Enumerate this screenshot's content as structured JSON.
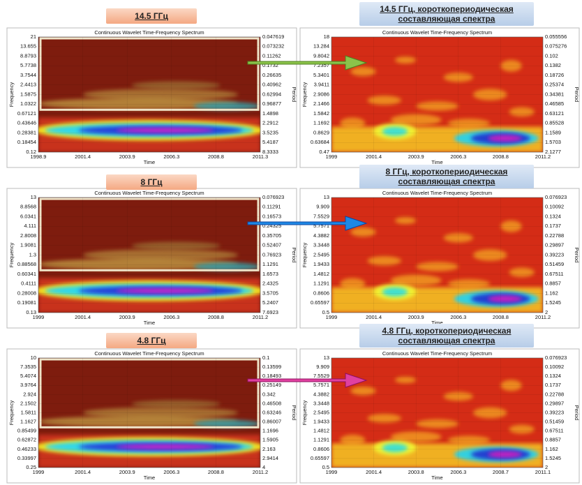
{
  "panels": [
    {
      "header": "14.5 ГГц",
      "title": "Continuous Wavelet Time-Frequency Spectrum",
      "frequency_ticks": [
        "21",
        "13.655",
        "8.8793",
        "5.7738",
        "3.7544",
        "2.4413",
        "1.5875",
        "1.0322",
        "0.67121",
        "0.43646",
        "0.28381",
        "0.18454",
        "0.12"
      ],
      "period_ticks": [
        "0.047619",
        "0.073232",
        "0.11262",
        "0.1732",
        "0.26635",
        "0.40962",
        "0.62994",
        "0.96877",
        "1.4898",
        "2.2912",
        "3.5235",
        "5.4187",
        "8.3333"
      ],
      "time_ticks": [
        "1998.9",
        "2001.4",
        "2003.9",
        "2006.3",
        "2008.8",
        "2011.3"
      ],
      "x_label": "Time",
      "y_label": "Frequency",
      "y2_label": "Period"
    },
    {
      "header": "14.5 ГГц, короткопериодическая составляющая спектра",
      "title": "Continuous Wavelet Time-Frequency Spectrum",
      "frequency_ticks": [
        "18",
        "13.284",
        "9.8042",
        "7.2357",
        "5.3401",
        "3.9411",
        "2.9086",
        "2.1466",
        "1.5842",
        "1.1692",
        "0.8629",
        "0.63684",
        "0.47"
      ],
      "period_ticks": [
        "0.055556",
        "0.075276",
        "0.102",
        "0.1382",
        "0.18726",
        "0.25374",
        "0.34381",
        "0.46585",
        "0.63121",
        "0.85528",
        "1.1589",
        "1.5703",
        "2.1277"
      ],
      "time_ticks": [
        "1999",
        "2001.4",
        "2003.9",
        "2006.3",
        "2008.8",
        "2011.2"
      ],
      "x_label": "Time",
      "y_label": "Frequency",
      "y2_label": "Period"
    },
    {
      "header": "8 ГГц",
      "title": "Continuous Wavelet Time-Frequency Spectrum",
      "frequency_ticks": [
        "13",
        "8.8568",
        "6.0341",
        "4.111",
        "2.8008",
        "1.9081",
        "1.3",
        "0.88568",
        "0.60341",
        "0.4111",
        "0.28008",
        "0.19081",
        "0.13"
      ],
      "period_ticks": [
        "0.076923",
        "0.11291",
        "0.16573",
        "0.24325",
        "0.35705",
        "0.52407",
        "0.76923",
        "1.1291",
        "1.6573",
        "2.4325",
        "3.5705",
        "5.2407",
        "7.6923"
      ],
      "time_ticks": [
        "1999",
        "2001.4",
        "2003.9",
        "2006.3",
        "2008.8",
        "2011.2"
      ],
      "x_label": "Time",
      "y_label": "Frequency",
      "y2_label": "Period"
    },
    {
      "header": "8 ГГц, короткопериодическая составляющая спектра",
      "title": "Continuous Wavelet Time-Frequency Spectrum",
      "frequency_ticks": [
        "13",
        "9.909",
        "7.5529",
        "5.7571",
        "4.3882",
        "3.3448",
        "2.5495",
        "1.9433",
        "1.4812",
        "1.1291",
        "0.8606",
        "0.65597",
        "0.5"
      ],
      "period_ticks": [
        "0.076923",
        "0.10092",
        "0.1324",
        "0.1737",
        "0.22788",
        "0.29897",
        "0.39223",
        "0.51459",
        "0.67511",
        "0.8857",
        "1.162",
        "1.5245",
        "2"
      ],
      "time_ticks": [
        "1999",
        "2001.4",
        "2003.9",
        "2006.3",
        "2008.8",
        "2011.2"
      ],
      "x_label": "Time",
      "y_label": "Frequency",
      "y2_label": "Period"
    },
    {
      "header": "4.8 ГГц",
      "title": "Continuous Wavelet Time-Frequency Spectrum",
      "frequency_ticks": [
        "10",
        "7.3535",
        "5.4074",
        "3.9764",
        "2.924",
        "2.1502",
        "1.5811",
        "1.1627",
        "0.85499",
        "0.62872",
        "0.46233",
        "0.33997",
        "0.25"
      ],
      "period_ticks": [
        "0.1",
        "0.13599",
        "0.18493",
        "0.25149",
        "0.342",
        "0.46508",
        "0.63246",
        "0.86007",
        "1.1696",
        "1.5905",
        "2.163",
        "2.9414",
        "4"
      ],
      "time_ticks": [
        "1999",
        "2001.4",
        "2003.9",
        "2006.3",
        "2008.8",
        "2011.2"
      ],
      "x_label": "Time",
      "y_label": "Frequency",
      "y2_label": "Period"
    },
    {
      "header": "4.8 ГГц, короткопериодическая составляющая спектра",
      "title": "Continuous Wavelet Time-Frequency Spectrum",
      "frequency_ticks": [
        "13",
        "9.909",
        "7.5529",
        "5.7571",
        "4.3882",
        "3.3448",
        "2.5495",
        "1.9433",
        "1.4812",
        "1.1291",
        "0.8606",
        "0.65597",
        "0.5"
      ],
      "period_ticks": [
        "0.076923",
        "0.10092",
        "0.1324",
        "0.1737",
        "0.22788",
        "0.29897",
        "0.39223",
        "0.51459",
        "0.67511",
        "0.8857",
        "1.162",
        "1.5245",
        "2"
      ],
      "time_ticks": [
        "1999",
        "2001.4",
        "2003.8",
        "2006.3",
        "2008.7",
        "2011.1"
      ],
      "x_label": "Time",
      "y_label": "Frequency",
      "y2_label": "Period"
    }
  ]
}
